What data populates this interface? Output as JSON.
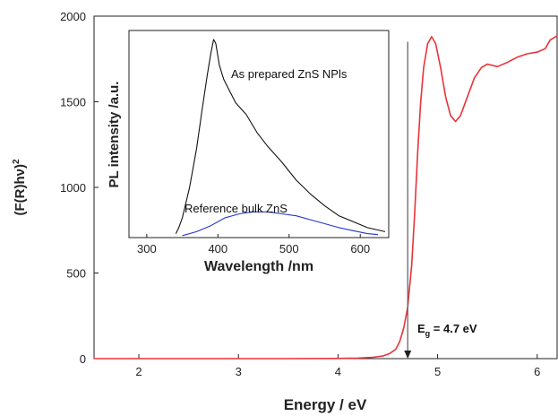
{
  "chart_data": [
    {
      "type": "line",
      "ylabel": "(F(R)hν)",
      "ylabel_sup": "2",
      "xlabel": "Energy / eV",
      "xlim": [
        1.55,
        6.2
      ],
      "ylim": [
        0,
        2000
      ],
      "x_ticks": [
        2,
        3,
        4,
        5,
        6
      ],
      "y_ticks": [
        0,
        500,
        1000,
        1500,
        2000
      ],
      "series": [
        {
          "color": "#e8333a",
          "points": [
            [
              1.55,
              0
            ],
            [
              3.5,
              0
            ],
            [
              4.0,
              1
            ],
            [
              4.2,
              3
            ],
            [
              4.35,
              8
            ],
            [
              4.45,
              15
            ],
            [
              4.52,
              30
            ],
            [
              4.58,
              55
            ],
            [
              4.62,
              100
            ],
            [
              4.66,
              180
            ],
            [
              4.7,
              300
            ],
            [
              4.74,
              550
            ],
            [
              4.77,
              850
            ],
            [
              4.8,
              1200
            ],
            [
              4.83,
              1500
            ],
            [
              4.86,
              1700
            ],
            [
              4.9,
              1840
            ],
            [
              4.94,
              1880
            ],
            [
              4.98,
              1840
            ],
            [
              5.03,
              1700
            ],
            [
              5.08,
              1530
            ],
            [
              5.13,
              1420
            ],
            [
              5.18,
              1385
            ],
            [
              5.23,
              1420
            ],
            [
              5.3,
              1530
            ],
            [
              5.37,
              1640
            ],
            [
              5.44,
              1700
            ],
            [
              5.5,
              1720
            ],
            [
              5.6,
              1705
            ],
            [
              5.7,
              1730
            ],
            [
              5.8,
              1760
            ],
            [
              5.9,
              1780
            ],
            [
              6.0,
              1790
            ],
            [
              6.08,
              1810
            ],
            [
              6.13,
              1860
            ],
            [
              6.17,
              1875
            ],
            [
              6.2,
              1885
            ]
          ]
        }
      ],
      "annotation": {
        "x": 4.7,
        "from_y": 1850,
        "to_y": 0,
        "label_main": "E",
        "label_sub": "g",
        "label_rest": " = 4.7 eV"
      }
    },
    {
      "type": "line",
      "ylabel": "PL intensity /a.u.",
      "xlabel": "Wavelength /nm",
      "xlim": [
        275,
        640
      ],
      "ylim": [
        0,
        1
      ],
      "x_ticks": [
        300,
        400,
        500,
        600
      ],
      "series": [
        {
          "name": "As prepared ZnS NPls",
          "color": "#111111",
          "points": [
            [
              341,
              0.02
            ],
            [
              345,
              0.05
            ],
            [
              350,
              0.1
            ],
            [
              360,
              0.25
            ],
            [
              370,
              0.45
            ],
            [
              378,
              0.65
            ],
            [
              385,
              0.82
            ],
            [
              390,
              0.93
            ],
            [
              394,
              1.0
            ],
            [
              397,
              0.98
            ],
            [
              402,
              0.87
            ],
            [
              408,
              0.8
            ],
            [
              415,
              0.75
            ],
            [
              425,
              0.68
            ],
            [
              440,
              0.62
            ],
            [
              455,
              0.53
            ],
            [
              470,
              0.46
            ],
            [
              490,
              0.38
            ],
            [
              510,
              0.29
            ],
            [
              530,
              0.22
            ],
            [
              550,
              0.16
            ],
            [
              570,
              0.11
            ],
            [
              590,
              0.08
            ],
            [
              610,
              0.05
            ],
            [
              635,
              0.03
            ]
          ]
        },
        {
          "name": "Reference bulk ZnS",
          "color": "#2233cc",
          "points": [
            [
              350,
              0.01
            ],
            [
              370,
              0.03
            ],
            [
              390,
              0.06
            ],
            [
              410,
              0.1
            ],
            [
              430,
              0.12
            ],
            [
              450,
              0.13
            ],
            [
              470,
              0.13
            ],
            [
              490,
              0.12
            ],
            [
              510,
              0.11
            ],
            [
              530,
              0.09
            ],
            [
              550,
              0.07
            ],
            [
              570,
              0.05
            ],
            [
              590,
              0.035
            ],
            [
              610,
              0.02
            ],
            [
              625,
              0.015
            ]
          ]
        }
      ]
    }
  ]
}
